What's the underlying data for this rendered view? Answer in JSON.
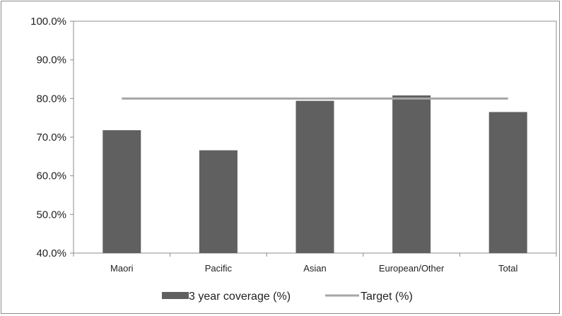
{
  "chart_data": {
    "type": "bar",
    "categories": [
      "Maori",
      "Pacific",
      "Asian",
      "European/Other",
      "Total"
    ],
    "series": [
      {
        "name": "3 year coverage (%)",
        "kind": "bar",
        "color": "#606060",
        "values": [
          71.8,
          66.6,
          79.4,
          80.8,
          76.5
        ]
      },
      {
        "name": "Target (%)",
        "kind": "line",
        "color": "#a6a6a6",
        "values": [
          80.0,
          80.0,
          80.0,
          80.0,
          80.0
        ]
      }
    ],
    "ylim": [
      40,
      100
    ],
    "yticks": [
      40,
      50,
      60,
      70,
      80,
      90,
      100
    ],
    "ytick_labels": [
      "40.0%",
      "50.0%",
      "60.0%",
      "70.0%",
      "80.0%",
      "90.0%",
      "100.0%"
    ],
    "title": "",
    "xlabel": "",
    "ylabel": "",
    "grid": false,
    "legend_position": "bottom"
  }
}
